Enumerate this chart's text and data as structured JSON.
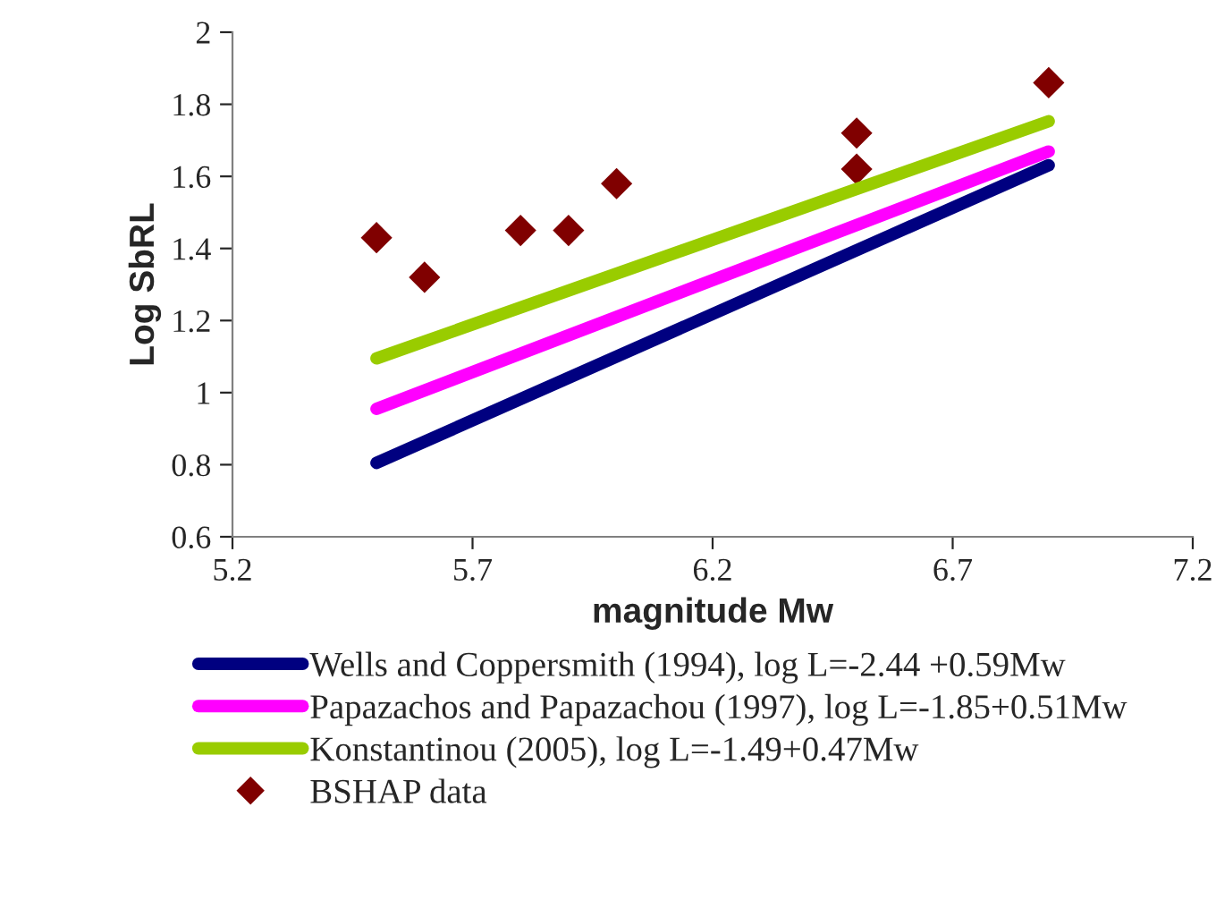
{
  "chart_data": {
    "type": "line",
    "xlabel": "magnitude Mw",
    "ylabel": "Log SbRL",
    "xlim": [
      5.2,
      7.2
    ],
    "xticks": [
      5.2,
      5.7,
      6.2,
      6.7,
      7.2
    ],
    "ylim": [
      0.6,
      2
    ],
    "yticks": [
      0.6,
      0.8,
      1,
      1.2,
      1.4,
      1.6,
      1.8,
      2
    ],
    "grid": false,
    "legend": "bottom",
    "marker": "none",
    "line_style": "solid",
    "series": [
      {
        "name": "Wells and Coppersmith (1994), log L=-2.44 +0.59Mw",
        "color": "#000080",
        "x": [
          5.5,
          6.9
        ],
        "values": [
          0.805,
          1.631
        ]
      },
      {
        "name": "Papazachos and Papazachou (1997), log L=-1.85+0.51Mw",
        "color": "#ff00ff",
        "x": [
          5.5,
          6.9
        ],
        "values": [
          0.955,
          1.669
        ]
      },
      {
        "name": "Konstantinou (2005), log L=-1.49+0.47Mw",
        "color": "#99cc00",
        "x": [
          5.5,
          6.9
        ],
        "values": [
          1.095,
          1.753
        ]
      },
      {
        "name": "BSHAP data",
        "type": "scatter",
        "marker": "diamond",
        "color": "#800000",
        "x": [
          5.5,
          5.6,
          5.8,
          5.9,
          6.0,
          6.5,
          6.5,
          6.9
        ],
        "values": [
          1.43,
          1.32,
          1.45,
          1.45,
          1.58,
          1.72,
          1.62,
          1.86
        ]
      }
    ]
  }
}
